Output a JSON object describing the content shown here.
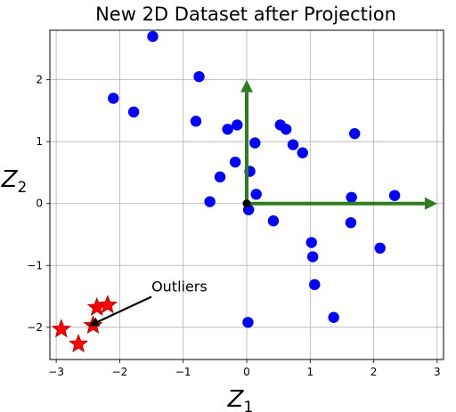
{
  "chart_data": {
    "type": "scatter",
    "title": "New 2D Dataset after Projection",
    "xlabel": {
      "main": "Z",
      "sub": "1"
    },
    "ylabel": {
      "main": "Z",
      "sub": "2"
    },
    "xlim": [
      -3.1,
      3.1
    ],
    "ylim": [
      -2.52,
      2.8
    ],
    "xticks": [
      -3,
      -2,
      -1,
      0,
      1,
      2,
      3
    ],
    "yticks": [
      -2,
      -1,
      0,
      1,
      2
    ],
    "xtick_labels": [
      "−3",
      "−2",
      "−1",
      "0",
      "1",
      "2",
      "3"
    ],
    "ytick_labels": [
      "−2",
      "−1",
      "0",
      "1",
      "2"
    ],
    "grid": true,
    "series": [
      {
        "marker": "circle",
        "color": "#0000ff",
        "points": [
          [
            -1.48,
            2.7
          ],
          [
            -0.75,
            2.05
          ],
          [
            -2.1,
            1.7
          ],
          [
            -1.78,
            1.48
          ],
          [
            -0.8,
            1.33
          ],
          [
            -0.3,
            1.2
          ],
          [
            -0.15,
            1.27
          ],
          [
            0.13,
            0.98
          ],
          [
            0.53,
            1.27
          ],
          [
            0.62,
            1.2
          ],
          [
            0.73,
            0.95
          ],
          [
            0.88,
            0.82
          ],
          [
            1.7,
            1.13
          ],
          [
            -0.18,
            0.67
          ],
          [
            0.05,
            0.52
          ],
          [
            -0.42,
            0.43
          ],
          [
            0.15,
            0.15
          ],
          [
            -0.58,
            0.03
          ],
          [
            0.03,
            -0.1
          ],
          [
            0.42,
            -0.28
          ],
          [
            1.65,
            0.1
          ],
          [
            2.33,
            0.13
          ],
          [
            1.64,
            -0.31
          ],
          [
            2.1,
            -0.72
          ],
          [
            1.02,
            -0.63
          ],
          [
            1.04,
            -0.86
          ],
          [
            1.07,
            -1.31
          ],
          [
            1.37,
            -1.84
          ],
          [
            0.02,
            -1.92
          ]
        ]
      },
      {
        "marker": "star",
        "color": "#ff0000",
        "points": [
          [
            -2.92,
            -2.03
          ],
          [
            -2.65,
            -2.27
          ],
          [
            -2.42,
            -1.97
          ],
          [
            -2.36,
            -1.68
          ],
          [
            -2.19,
            -1.64
          ]
        ]
      }
    ],
    "origin": [
      0,
      0
    ],
    "vectors": [
      {
        "color": "#2e7d1f",
        "from": [
          0,
          0
        ],
        "to": [
          3.0,
          0
        ]
      },
      {
        "color": "#2e7d1f",
        "from": [
          0,
          0
        ],
        "to": [
          0,
          2.0
        ]
      }
    ],
    "annotations": [
      {
        "text": "Outliers",
        "xy": [
          -2.47,
          -1.97
        ],
        "xytext": [
          -1.5,
          -1.42
        ]
      }
    ]
  }
}
